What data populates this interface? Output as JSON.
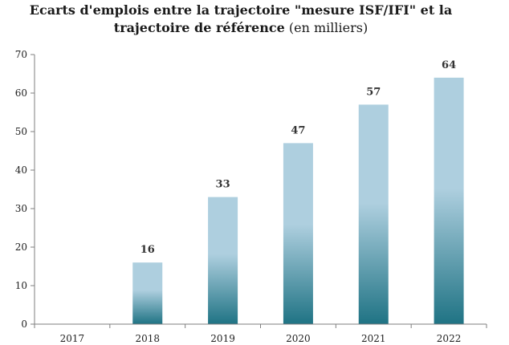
{
  "chart_data": {
    "type": "bar",
    "title_line1": "Ecarts d'emplois entre la trajectoire \"mesure ISF/IFI\" et la",
    "title_line2_bold": "trajectoire de référence",
    "title_line2_normal": " (en milliers)",
    "categories": [
      "2017",
      "2018",
      "2019",
      "2020",
      "2021",
      "2022"
    ],
    "values": [
      0,
      16,
      33,
      47,
      57,
      64
    ],
    "data_labels": [
      "",
      "16",
      "33",
      "47",
      "57",
      "64"
    ],
    "ylim": [
      0,
      70
    ],
    "yticks": [
      0,
      10,
      20,
      30,
      40,
      50,
      60,
      70
    ],
    "xlabel": "",
    "ylabel": "",
    "grid": false,
    "colors": {
      "bar_top": "#aecfdf",
      "bar_bottom": "#1f7384",
      "axis": "#7f7f7f"
    }
  }
}
